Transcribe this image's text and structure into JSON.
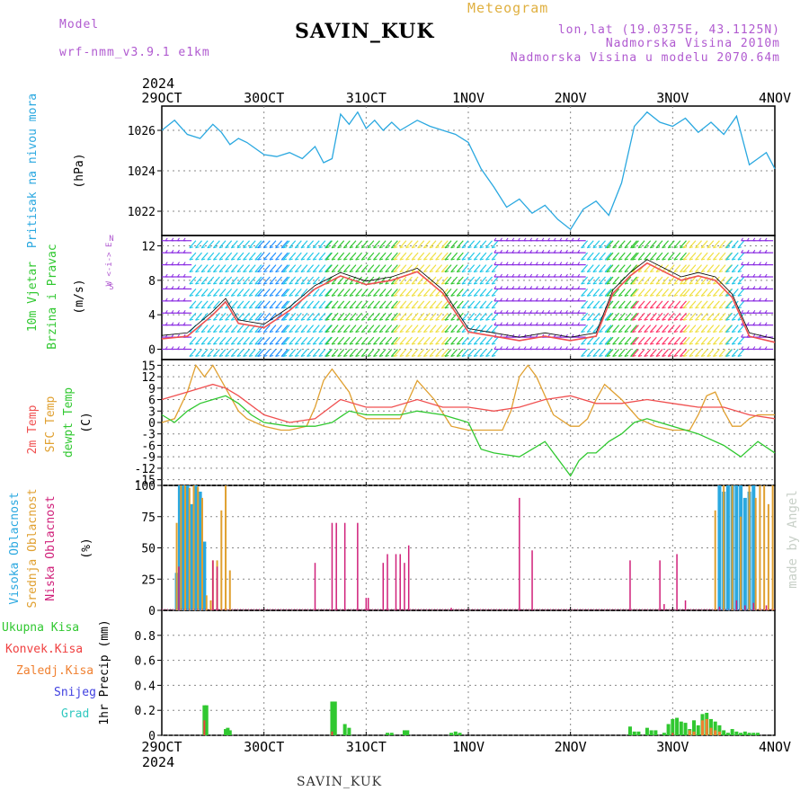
{
  "header": {
    "model_label": "Model",
    "model_name": "wrf-nmm_v3.9.1  e1km",
    "station": "SAVIN_KUK",
    "product": "Meteogram",
    "lonlat": "lon,lat (19.0375E, 43.1125N)",
    "altitude": "Nadmorska Visina 2010m",
    "model_altitude": "Nadmorska Visina u modelu 2070.64m",
    "year": "2024",
    "footer_station": "SAVIN_KUK",
    "watermark": "made by Angel"
  },
  "colors": {
    "pressure": "#2aa8e0",
    "temp2m": "#f05050",
    "sfc": "#e0a030",
    "dewpt": "#30c830",
    "high_cloud": "#2aa8e0",
    "mid_cloud": "#e0a030",
    "low_cloud": "#d0207a",
    "precip_total": "#30c830",
    "precip_conv": "#f04040",
    "precip_frozen": "#f08030",
    "snow": "#4040e0",
    "graupel": "#30c8c0",
    "wind_label": "#30c830",
    "compass": "#b05ad0"
  },
  "chart_data": {
    "type": "line",
    "x_ticks": [
      "29OCT",
      "30OCT",
      "31OCT",
      "1NOV",
      "2NOV",
      "3NOV",
      "4NOV"
    ],
    "x_hours": [
      0,
      24,
      48,
      72,
      96,
      120,
      144
    ],
    "panels": {
      "pressure": {
        "ylabel_name": "Pritisak na nivou mora",
        "unit": "(hPa)",
        "ylim": [
          1020.8,
          1027.2
        ],
        "yticks": [
          1022,
          1024,
          1026
        ],
        "x": [
          0,
          3,
          6,
          9,
          12,
          14,
          16,
          18,
          20,
          24,
          27,
          30,
          33,
          36,
          38,
          40,
          42,
          44,
          46,
          48,
          50,
          52,
          54,
          56,
          60,
          63,
          66,
          69,
          72,
          75,
          78,
          81,
          84,
          87,
          90,
          93,
          96,
          99,
          102,
          105,
          108,
          111,
          114,
          117,
          120,
          123,
          126,
          129,
          132,
          135,
          138,
          140,
          142,
          144
        ],
        "y": [
          1026.0,
          1026.5,
          1025.8,
          1025.6,
          1026.3,
          1025.9,
          1025.3,
          1025.6,
          1025.4,
          1024.8,
          1024.7,
          1024.9,
          1024.6,
          1025.2,
          1024.4,
          1024.6,
          1026.8,
          1026.3,
          1026.9,
          1026.1,
          1026.5,
          1026.0,
          1026.4,
          1026.0,
          1026.5,
          1026.2,
          1026.0,
          1025.8,
          1025.4,
          1024.1,
          1023.2,
          1022.2,
          1022.6,
          1021.9,
          1022.3,
          1021.6,
          1021.1,
          1022.1,
          1022.5,
          1021.8,
          1023.4,
          1026.2,
          1026.9,
          1026.4,
          1026.2,
          1026.6,
          1025.9,
          1026.4,
          1025.8,
          1026.7,
          1024.3,
          1024.6,
          1024.9,
          1024.1
        ]
      },
      "wind": {
        "ylabel_name": "10m Vjetar",
        "ylabel_sub": "Brzina i Pravac",
        "unit": "(m/s)",
        "compass": "W <-i-> E",
        "compass_n": "N",
        "compass_s": "S",
        "ylim": [
          -1.2,
          13.2
        ],
        "yticks": [
          0,
          4,
          8,
          12
        ],
        "barb_rows": [
          0,
          1.4,
          2.8,
          4.2,
          5.6,
          7,
          8.4,
          9.8,
          11.2,
          12.6
        ],
        "segments": [
          {
            "x0": 0,
            "x1": 8,
            "color": "#8a2be2"
          },
          {
            "x0": 8,
            "x1": 24,
            "color": "#1ec8e8"
          },
          {
            "x0": 24,
            "x1": 30,
            "color": "#1e90ff"
          },
          {
            "x0": 30,
            "x1": 40,
            "color": "#1ec8e8"
          },
          {
            "x0": 40,
            "x1": 56,
            "color": "#30c830"
          },
          {
            "x0": 56,
            "x1": 68,
            "color": "#f0e040"
          },
          {
            "x0": 68,
            "x1": 72,
            "color": "#30c830"
          },
          {
            "x0": 72,
            "x1": 80,
            "color": "#1ec8e8"
          },
          {
            "x0": 80,
            "x1": 100,
            "color": "#8a2be2"
          },
          {
            "x0": 100,
            "x1": 106,
            "color": "#1ec8e8"
          },
          {
            "x0": 106,
            "x1": 112,
            "color": "#30c830"
          },
          {
            "x0": 112,
            "x1": 124,
            "color": "#ff3366"
          },
          {
            "x0": 124,
            "x1": 134,
            "color": "#f0e040"
          },
          {
            "x0": 134,
            "x1": 138,
            "color": "#1ec8e8"
          },
          {
            "x0": 138,
            "x1": 144,
            "color": "#8a2be2"
          }
        ],
        "speed_x": [
          0,
          6,
          12,
          15,
          18,
          24,
          30,
          36,
          42,
          48,
          54,
          60,
          66,
          72,
          78,
          84,
          90,
          96,
          102,
          106,
          110,
          114,
          118,
          122,
          126,
          130,
          134,
          138,
          144
        ],
        "speed_y": [
          1.2,
          1.5,
          4.0,
          5.5,
          3.0,
          2.5,
          4.5,
          7.0,
          8.5,
          7.5,
          8.0,
          9.0,
          6.5,
          2.0,
          1.5,
          1.0,
          1.5,
          1.0,
          1.5,
          6.5,
          8.5,
          10.0,
          9.0,
          8.0,
          8.5,
          8.0,
          6.0,
          1.5,
          0.8
        ]
      },
      "temperature": {
        "ylabel_temp": "2m Temp",
        "ylabel_sfc": "SFC Temp",
        "ylabel_dew": "dewpt Temp",
        "unit": "(C)",
        "ylim": [
          -16.5,
          16.5
        ],
        "yticks": [
          -15,
          -12,
          -9,
          -6,
          -3,
          0,
          3,
          6,
          9,
          12,
          15
        ],
        "temp2m_x": [
          0,
          6,
          12,
          15,
          18,
          24,
          30,
          36,
          42,
          48,
          54,
          60,
          66,
          72,
          78,
          84,
          90,
          96,
          102,
          108,
          114,
          120,
          126,
          132,
          138,
          144
        ],
        "temp2m_y": [
          6,
          8,
          10,
          9,
          7,
          2,
          0,
          1,
          6,
          4,
          4,
          6,
          4,
          4,
          3,
          4,
          6,
          7,
          5,
          5,
          6,
          5,
          4,
          4,
          2,
          1
        ],
        "sfc_x": [
          0,
          3,
          6,
          8,
          10,
          12,
          14,
          16,
          18,
          20,
          24,
          28,
          30,
          34,
          36,
          38,
          40,
          44,
          46,
          48,
          52,
          56,
          58,
          60,
          64,
          68,
          72,
          76,
          80,
          82,
          84,
          86,
          88,
          92,
          96,
          98,
          100,
          102,
          104,
          108,
          112,
          114,
          116,
          120,
          124,
          126,
          128,
          130,
          132,
          134,
          136,
          138,
          140,
          144
        ],
        "sfc_y": [
          0,
          1,
          8,
          15,
          12,
          15,
          11,
          7,
          3,
          1,
          -1,
          -2,
          -2,
          -1,
          4,
          11,
          14,
          8,
          2,
          1,
          1,
          1,
          6,
          11,
          6,
          -1,
          -2,
          -2,
          -2,
          3,
          12,
          15,
          12,
          2,
          -1,
          -1,
          1,
          6,
          10,
          6,
          1,
          0,
          -1,
          -2,
          -2,
          2,
          7,
          8,
          3,
          -1,
          -1,
          1,
          2,
          2
        ],
        "dew_x": [
          0,
          3,
          6,
          9,
          12,
          15,
          18,
          21,
          24,
          30,
          36,
          40,
          44,
          48,
          52,
          56,
          60,
          66,
          72,
          75,
          78,
          84,
          90,
          96,
          98,
          100,
          102,
          105,
          108,
          111,
          114,
          117,
          120,
          126,
          132,
          136,
          140,
          144
        ],
        "dew_y": [
          2,
          0,
          3,
          5,
          6,
          7,
          5,
          2,
          0,
          -1,
          -1,
          0,
          3,
          2,
          2,
          2,
          3,
          2,
          0,
          -7,
          -8,
          -9,
          -5,
          -14,
          -10,
          -8,
          -8,
          -5,
          -3,
          0,
          1,
          0,
          -1,
          -3,
          -6,
          -9,
          -5,
          -8
        ]
      },
      "cloud": {
        "ylabel_high": "Visoka Oblacnost",
        "ylabel_mid": "Srednja Oblacnost",
        "ylabel_low": "Niska Oblacnost",
        "unit": "(%)",
        "ylim": [
          0,
          100
        ],
        "yticks": [
          0,
          25,
          50,
          75,
          100
        ],
        "high": [
          [
            3.5,
            30
          ],
          [
            4.2,
            100
          ],
          [
            5,
            100
          ],
          [
            6,
            100
          ],
          [
            7,
            85
          ],
          [
            8,
            100
          ],
          [
            9,
            95
          ],
          [
            10,
            55
          ],
          [
            131,
            100
          ],
          [
            132,
            95
          ],
          [
            133,
            100
          ],
          [
            134,
            100
          ],
          [
            135,
            100
          ],
          [
            136,
            100
          ],
          [
            137,
            90
          ],
          [
            138,
            95
          ],
          [
            139,
            100
          ]
        ],
        "mid": [
          [
            3.5,
            70
          ],
          [
            4.5,
            100
          ],
          [
            5.5,
            100
          ],
          [
            6.5,
            98
          ],
          [
            7.5,
            100
          ],
          [
            8.5,
            99
          ],
          [
            9.5,
            90
          ],
          [
            10.5,
            12
          ],
          [
            11.5,
            8
          ],
          [
            12,
            40
          ],
          [
            13,
            40
          ],
          [
            14,
            80
          ],
          [
            15,
            100
          ],
          [
            16,
            32
          ],
          [
            130,
            80
          ],
          [
            132,
            100
          ],
          [
            134,
            100
          ],
          [
            136,
            75
          ],
          [
            138,
            100
          ],
          [
            139.5,
            90
          ],
          [
            140.5,
            100
          ],
          [
            141.5,
            100
          ],
          [
            142.5,
            85
          ],
          [
            143.5,
            100
          ]
        ],
        "low": [
          [
            4,
            35
          ],
          [
            12,
            40
          ],
          [
            13,
            35
          ],
          [
            36,
            38
          ],
          [
            40,
            70
          ],
          [
            41,
            70
          ],
          [
            43,
            70
          ],
          [
            46,
            70
          ],
          [
            48,
            10
          ],
          [
            48.5,
            10
          ],
          [
            52,
            38
          ],
          [
            53,
            45
          ],
          [
            55,
            45
          ],
          [
            56,
            45
          ],
          [
            57,
            38
          ],
          [
            58,
            52
          ],
          [
            68,
            2
          ],
          [
            84,
            90
          ],
          [
            87,
            48
          ],
          [
            110,
            40
          ],
          [
            117,
            40
          ],
          [
            118,
            5
          ],
          [
            121,
            45
          ],
          [
            123,
            8
          ],
          [
            131,
            3
          ],
          [
            135,
            8
          ],
          [
            137,
            4
          ],
          [
            139,
            6
          ],
          [
            142,
            4
          ]
        ]
      },
      "precip": {
        "legend_total": "Ukupna Kisa",
        "legend_conv": "Konvek.Kisa",
        "legend_frozen": "Zaledj.Kisa",
        "legend_snow": "Snijeg",
        "legend_graupel": "Grad",
        "unit": "1hr Precip (mm)",
        "ylim": [
          0,
          1.0
        ],
        "yticks": [
          0,
          0.2,
          0.4,
          0.6,
          0.8
        ],
        "total_x": [
          10,
          10.5,
          15,
          15.5,
          16,
          40,
          40.7,
          43,
          44,
          53,
          54,
          57,
          57.7,
          68,
          69,
          70,
          110,
          111,
          112,
          114,
          115,
          116,
          118,
          119,
          120,
          121,
          122,
          123,
          124,
          125,
          126,
          127,
          128,
          129,
          130,
          131,
          132,
          133,
          134,
          135,
          136,
          137,
          138,
          139,
          140
        ],
        "total_y": [
          0.24,
          0.24,
          0.05,
          0.06,
          0.04,
          0.27,
          0.27,
          0.09,
          0.06,
          0.02,
          0.02,
          0.04,
          0.04,
          0.02,
          0.03,
          0.02,
          0.07,
          0.03,
          0.03,
          0.06,
          0.04,
          0.04,
          0.02,
          0.09,
          0.13,
          0.14,
          0.11,
          0.1,
          0.05,
          0.12,
          0.08,
          0.17,
          0.18,
          0.13,
          0.11,
          0.08,
          0.04,
          0.02,
          0.05,
          0.03,
          0.02,
          0.03,
          0.02,
          0.02,
          0.02
        ],
        "conv_x": [
          10,
          40,
          120
        ],
        "conv_y": [
          0.12,
          0.03,
          0.02
        ],
        "frozen_x": [
          124,
          125,
          127,
          128,
          129,
          130,
          131
        ],
        "frozen_y": [
          0.04,
          0.03,
          0.12,
          0.13,
          0.06,
          0.04,
          0.03
        ]
      }
    }
  }
}
